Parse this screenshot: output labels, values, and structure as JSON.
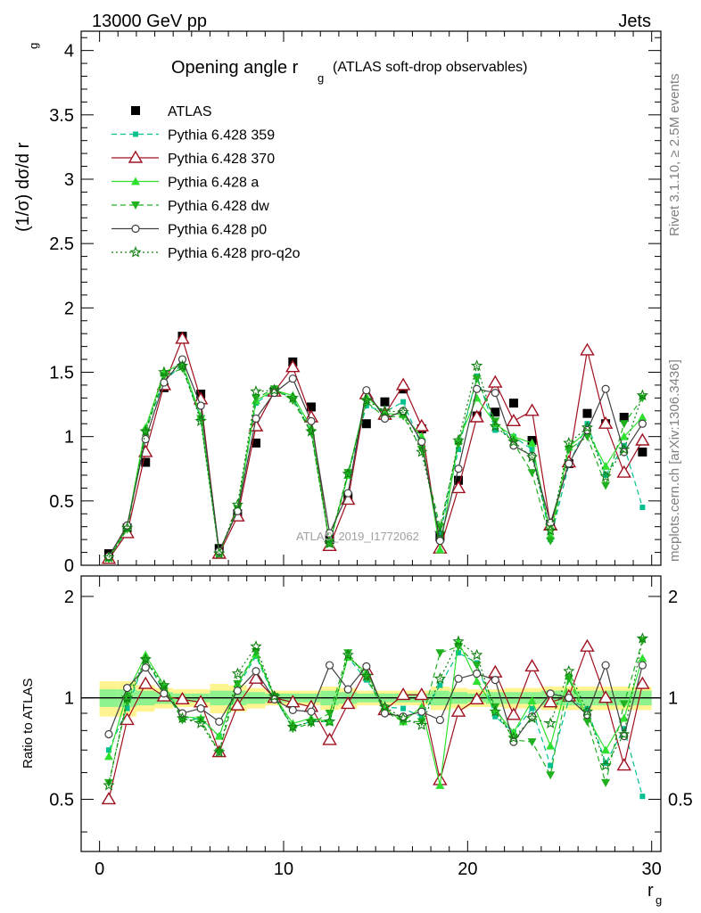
{
  "header": {
    "left": "13000 GeV pp",
    "right": "Jets"
  },
  "side_text": {
    "rivet": "Rivet 3.1.10, ≥ 2.5M events",
    "mcplots": "mcplots.cern.ch [arXiv:1306.3436]"
  },
  "watermark": "ATLAS_2019_I1772062",
  "main_panel": {
    "title_main": "Opening angle r",
    "title_sub": "g",
    "title_rest": "(ATLAS soft-drop observables)",
    "ylabel": "(1/σ) dσ/d r",
    "ylabel_sub": "g"
  },
  "ratio_panel": {
    "ylabel": "Ratio to ATLAS"
  },
  "xaxis": {
    "label": "r",
    "label_sub": "g"
  },
  "chart_data": [
    {
      "type": "line",
      "panel": "main",
      "xlim": [
        -1,
        30.5
      ],
      "ylim": [
        0,
        4.15
      ],
      "xticks": [
        0,
        10,
        20,
        30
      ],
      "yticks": [
        0,
        0.5,
        1,
        1.5,
        2,
        2.5,
        3,
        3.5,
        4
      ],
      "ytick_labels": [
        "0",
        "0.5",
        "1",
        "1.5",
        "2",
        "2.5",
        "3",
        "3.5",
        "4"
      ],
      "x": [
        0.5,
        1.5,
        2.5,
        3.5,
        4.5,
        5.5,
        6.5,
        7.5,
        8.5,
        9.5,
        10.5,
        11.5,
        12.5,
        13.5,
        14.5,
        15.5,
        16.5,
        17.5,
        18.5,
        19.5,
        20.5,
        21.5,
        22.5,
        23.5,
        24.5,
        25.5,
        26.5,
        27.5,
        28.5,
        29.5
      ],
      "series": [
        {
          "name": "ATLAS",
          "color": "#000000",
          "marker": "square",
          "line": "none",
          "values": [
            0.09,
            0.29,
            0.8,
            1.38,
            1.78,
            1.33,
            0.13,
            0.4,
            0.95,
            1.35,
            1.58,
            1.23,
            0.2,
            0.53,
            1.1,
            1.27,
            1.37,
            1.06,
            0.22,
            0.66,
            1.16,
            1.19,
            1.26,
            0.97,
            0.32,
            0.79,
            1.18,
            1.1,
            1.15,
            0.88
          ]
        },
        {
          "name": "Pythia 6.428 359",
          "color": "#00c090",
          "marker": "smallsquare",
          "line": "dash",
          "values": [
            0.06,
            0.27,
            1.05,
            1.43,
            1.56,
            1.14,
            0.1,
            0.43,
            1.26,
            1.36,
            1.3,
            1.04,
            0.17,
            0.7,
            1.24,
            1.19,
            1.27,
            0.93,
            0.24,
            0.9,
            1.47,
            1.05,
            1.0,
            0.9,
            0.2,
            0.78,
            1.1,
            0.7,
            0.93,
            0.45
          ]
        },
        {
          "name": "Pythia 6.428 370",
          "color": "#a01020",
          "marker": "triangle-open",
          "line": "solid",
          "values": [
            0.05,
            0.25,
            0.88,
            1.4,
            1.76,
            1.29,
            0.09,
            0.38,
            1.08,
            1.35,
            1.54,
            1.15,
            0.15,
            0.51,
            1.33,
            1.17,
            1.4,
            1.08,
            0.13,
            0.6,
            1.15,
            1.42,
            1.12,
            1.2,
            0.31,
            0.8,
            1.67,
            1.1,
            0.72,
            0.97
          ]
        },
        {
          "name": "Pythia 6.428 a",
          "color": "#30e030",
          "marker": "triangle-up",
          "line": "solid",
          "values": [
            0.06,
            0.3,
            1.07,
            1.5,
            1.57,
            1.16,
            0.1,
            0.44,
            1.28,
            1.36,
            1.32,
            1.07,
            0.17,
            0.7,
            1.31,
            1.18,
            1.17,
            1.0,
            0.12,
            0.97,
            1.3,
            1.1,
            1.0,
            0.95,
            0.23,
            0.92,
            1.04,
            0.77,
            1.0,
            1.15
          ]
        },
        {
          "name": "Pythia 6.428 dw",
          "color": "#20b020",
          "marker": "triangle-down",
          "line": "dash",
          "values": [
            0.05,
            0.28,
            1.03,
            1.47,
            1.53,
            1.14,
            0.09,
            0.44,
            1.3,
            1.37,
            1.28,
            1.03,
            0.18,
            0.72,
            1.27,
            1.15,
            1.16,
            0.9,
            0.3,
            0.94,
            1.45,
            1.12,
            0.95,
            0.72,
            0.19,
            0.9,
            1.0,
            0.62,
            1.1,
            1.3
          ]
        },
        {
          "name": "Pythia 6.428 p0",
          "color": "#404040",
          "marker": "circle-open",
          "line": "solid",
          "values": [
            0.07,
            0.31,
            0.98,
            1.42,
            1.6,
            1.24,
            0.11,
            0.42,
            1.14,
            1.34,
            1.45,
            1.12,
            0.25,
            0.56,
            1.36,
            1.14,
            1.2,
            0.96,
            0.19,
            0.75,
            1.37,
            1.34,
            0.93,
            0.85,
            0.33,
            0.79,
            1.05,
            1.37,
            0.88,
            1.1
          ]
        },
        {
          "name": "Pythia 6.428 pro-q2o",
          "color": "#108010",
          "marker": "star",
          "line": "dot",
          "values": [
            0.06,
            0.29,
            1.04,
            1.5,
            1.55,
            1.12,
            0.09,
            0.47,
            1.35,
            1.36,
            1.3,
            1.04,
            0.17,
            0.71,
            1.28,
            1.2,
            1.19,
            0.88,
            0.25,
            0.97,
            1.55,
            1.08,
            0.96,
            0.84,
            0.27,
            0.95,
            1.07,
            0.69,
            0.9,
            1.32
          ]
        }
      ]
    },
    {
      "type": "line",
      "panel": "ratio",
      "xlim": [
        -1,
        30.5
      ],
      "ylim": [
        0.35,
        2.3
      ],
      "log_scale": true,
      "xticks": [
        0,
        10,
        20,
        30
      ],
      "xtick_labels": [
        "0",
        "10",
        "20",
        "30"
      ],
      "yticks": [
        0.5,
        1,
        2
      ],
      "ytick_labels": [
        "0.5",
        "1",
        "2"
      ],
      "band_inner_halfwidth": [
        0.06,
        0.06,
        0.05,
        0.04,
        0.03,
        0.03,
        0.05,
        0.05,
        0.04,
        0.03,
        0.03,
        0.03,
        0.05,
        0.04,
        0.03,
        0.03,
        0.03,
        0.03,
        0.05,
        0.04,
        0.03,
        0.04,
        0.04,
        0.04,
        0.05,
        0.05,
        0.05,
        0.05,
        0.05,
        0.05
      ],
      "band_outer_halfwidth": [
        0.12,
        0.12,
        0.09,
        0.07,
        0.06,
        0.06,
        0.1,
        0.09,
        0.07,
        0.05,
        0.05,
        0.05,
        0.08,
        0.07,
        0.05,
        0.05,
        0.05,
        0.05,
        0.08,
        0.07,
        0.06,
        0.06,
        0.07,
        0.07,
        0.08,
        0.08,
        0.08,
        0.08,
        0.08,
        0.08
      ],
      "series": [
        {
          "name": "Pythia 6.428 359",
          "values": [
            0.7,
            0.93,
            1.31,
            1.04,
            0.88,
            0.86,
            0.77,
            1.08,
            1.33,
            1.0,
            0.82,
            0.85,
            0.85,
            1.32,
            1.13,
            0.94,
            0.93,
            0.88,
            1.09,
            1.36,
            1.27,
            0.88,
            0.79,
            0.93,
            0.63,
            0.99,
            0.93,
            0.64,
            0.81,
            0.51
          ]
        },
        {
          "name": "Pythia 6.428 370",
          "values": [
            0.5,
            0.86,
            1.1,
            1.01,
            0.99,
            0.97,
            0.69,
            0.95,
            1.14,
            1.0,
            0.97,
            0.94,
            0.75,
            0.96,
            1.21,
            0.92,
            1.02,
            1.02,
            0.57,
            0.91,
            0.99,
            1.19,
            0.89,
            1.24,
            0.97,
            1.01,
            1.42,
            1.0,
            0.63,
            1.1
          ]
        },
        {
          "name": "Pythia 6.428 a",
          "values": [
            0.67,
            1.03,
            1.34,
            1.09,
            0.88,
            0.87,
            0.77,
            1.1,
            1.35,
            1.01,
            0.84,
            0.87,
            0.85,
            1.32,
            1.19,
            0.93,
            0.85,
            0.94,
            0.55,
            1.47,
            1.12,
            0.92,
            0.79,
            0.98,
            0.72,
            1.16,
            0.88,
            0.7,
            0.87,
            1.31
          ]
        },
        {
          "name": "Pythia 6.428 dw",
          "values": [
            0.56,
            0.97,
            1.29,
            1.07,
            0.86,
            0.86,
            0.69,
            1.1,
            1.37,
            1.01,
            0.81,
            0.84,
            0.9,
            1.36,
            1.15,
            0.91,
            0.85,
            0.85,
            1.36,
            1.42,
            1.25,
            0.94,
            0.75,
            0.74,
            0.59,
            1.14,
            0.85,
            0.56,
            0.96,
            1.48
          ]
        },
        {
          "name": "Pythia 6.428 p0",
          "values": [
            0.78,
            1.07,
            1.23,
            1.03,
            0.9,
            0.93,
            0.85,
            1.05,
            1.2,
            0.99,
            0.92,
            0.91,
            1.25,
            1.06,
            1.24,
            0.9,
            0.88,
            0.91,
            0.86,
            1.14,
            1.18,
            1.13,
            0.74,
            0.88,
            1.03,
            1.0,
            0.89,
            1.25,
            0.77,
            1.25
          ]
        },
        {
          "name": "Pythia 6.428 pro-q2o",
          "values": [
            0.55,
            1.0,
            1.3,
            1.09,
            0.87,
            0.84,
            0.69,
            1.18,
            1.42,
            1.01,
            0.82,
            0.85,
            0.85,
            1.34,
            1.16,
            0.94,
            0.87,
            0.83,
            1.14,
            1.47,
            1.34,
            0.91,
            0.76,
            0.87,
            0.84,
            1.2,
            0.91,
            0.63,
            0.78,
            1.5
          ]
        }
      ]
    }
  ]
}
